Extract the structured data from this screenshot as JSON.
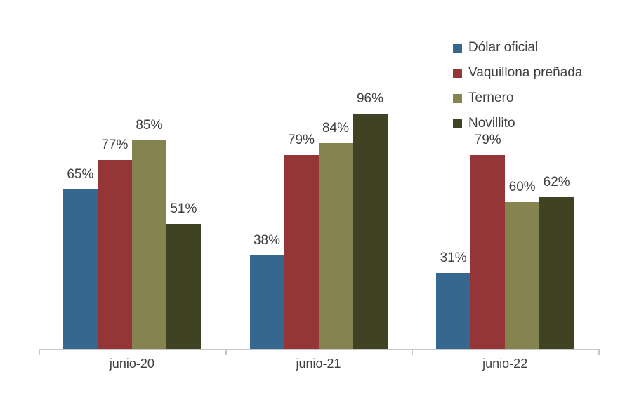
{
  "chart_data": {
    "type": "bar",
    "categories": [
      "junio-20",
      "junio-21",
      "junio-22"
    ],
    "series": [
      {
        "name": "Dólar oficial",
        "color": "#36688F",
        "values": [
          65,
          38,
          31
        ]
      },
      {
        "name": "Vaquillona preñada",
        "color": "#943538",
        "values": [
          77,
          79,
          79
        ]
      },
      {
        "name": "Ternero",
        "color": "#85834F",
        "values": [
          85,
          84,
          60
        ]
      },
      {
        "name": "Novillito",
        "color": "#3F4223",
        "values": [
          51,
          96,
          62
        ]
      }
    ],
    "unit": "%",
    "title": "",
    "xlabel": "",
    "ylabel": "",
    "ylim": [
      0,
      100
    ],
    "grid": false,
    "legend_position": "top-right",
    "value_labels": "above-bars"
  },
  "colors": {
    "background": "#FFFFFF",
    "text": "#3F3F3F",
    "axis_line": "#C8C8C8"
  }
}
